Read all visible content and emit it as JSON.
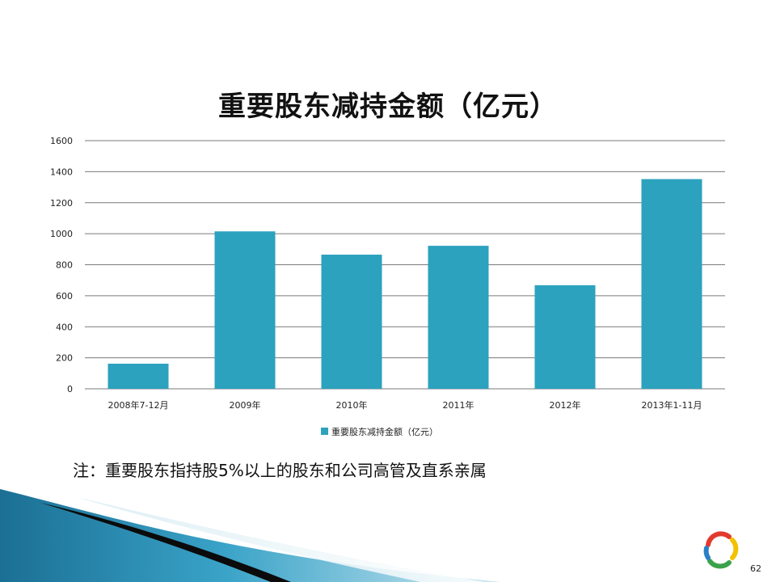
{
  "chart_data": {
    "type": "bar",
    "title": "重要股东减持金额（亿元）",
    "categories": [
      "2008年7-12月",
      "2009年",
      "2010年",
      "2011年",
      "2012年",
      "2013年1-11月"
    ],
    "series": [
      {
        "name": "重要股东减持金额（亿元）",
        "values": [
          162,
          1015,
          865,
          922,
          668,
          1352
        ],
        "color": "#2CA2BE"
      }
    ],
    "ylim": [
      0,
      1600
    ],
    "yticks": [
      0,
      200,
      400,
      600,
      800,
      1000,
      1200,
      1400,
      1600
    ],
    "grid": true,
    "legend_position": "bottom"
  },
  "note": "注：重要股东指持股5%以上的股东和公司高管及直系亲属",
  "page_number": "62",
  "colors": {
    "bar": "#2CA2BE",
    "gridline": "#7a7a7a",
    "decor_dark": "#0b0b0b",
    "decor_blue": "#2a8fb3",
    "logo_red": "#e23b2e",
    "logo_yellow": "#f2c200",
    "logo_green": "#3aa24a",
    "logo_blue": "#2a7fc6"
  }
}
